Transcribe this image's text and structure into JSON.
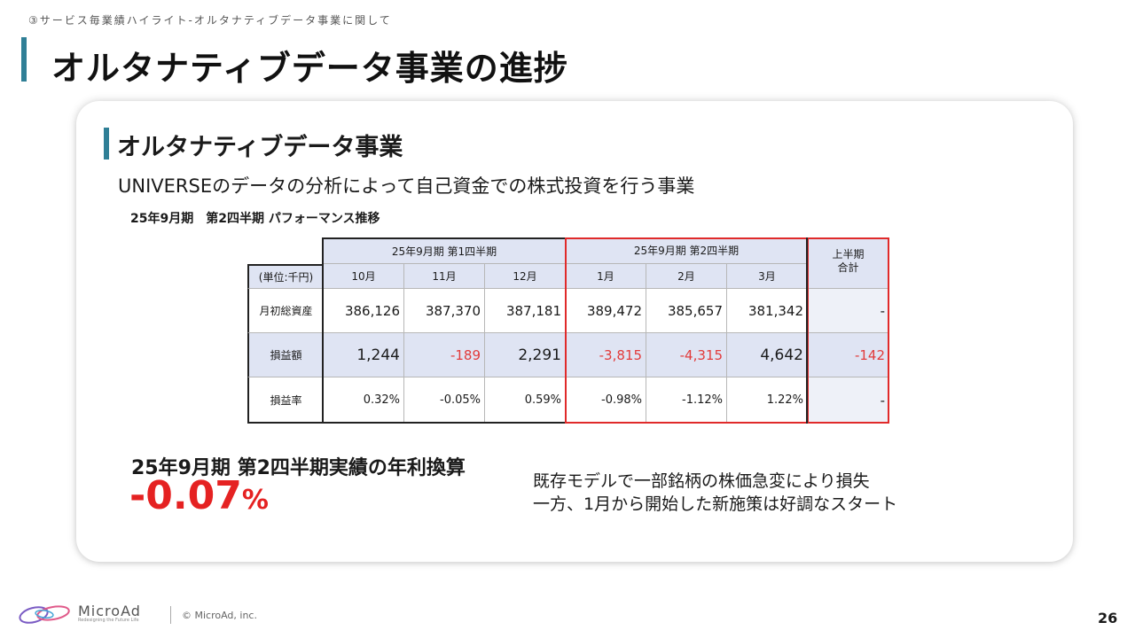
{
  "breadcrumb": "③サービス毎業績ハイライト-オルタナティブデータ事業に関して",
  "page_title": "オルタナティブデータ事業の進捗",
  "section": {
    "title": "オルタナティブデータ事業",
    "description": "UNIVERSEのデータの分析によって自己資金での株式投資を行う事業"
  },
  "table": {
    "caption": "25年9月期　第2四半期 パフォーマンス推移",
    "group_q1": "25年9月期 第1四半期",
    "group_q2": "25年9月期 第2四半期",
    "total_header": "上半期\n合計",
    "unit_label": "(単位:千円)",
    "months": [
      "10月",
      "11月",
      "12月",
      "1月",
      "2月",
      "3月"
    ],
    "rows": [
      {
        "label": "月初総資産",
        "values": [
          "386,126",
          "387,370",
          "387,181",
          "389,472",
          "385,657",
          "381,342"
        ],
        "total": "-"
      },
      {
        "label": "損益額",
        "values": [
          "1,244",
          "-189",
          "2,291",
          "-3,815",
          "-4,315",
          "4,642"
        ],
        "total": "-142"
      },
      {
        "label": "損益率",
        "values": [
          "0.32%",
          "-0.05%",
          "0.59%",
          "-0.98%",
          "-1.12%",
          "1.22%"
        ],
        "total": "-"
      }
    ]
  },
  "annual": {
    "label": "25年9月期 第2四半期実績の年利換算",
    "value": "-0.07",
    "unit": "%"
  },
  "comment": {
    "line1": "既存モデルで一部銘柄の株価急変により損失",
    "line2": "一方、1月から開始した新施策は好調なスタート"
  },
  "footer": {
    "logo": "MicroAd",
    "tagline": "Redesigning the Future Life",
    "copyright": "© MicroAd, inc.",
    "page_number": "26"
  },
  "colors": {
    "accent": "#2f7f96",
    "negative": "#e23b3b",
    "header_fill": "#dfe4f3",
    "highlight_border": "#e02a2a"
  }
}
